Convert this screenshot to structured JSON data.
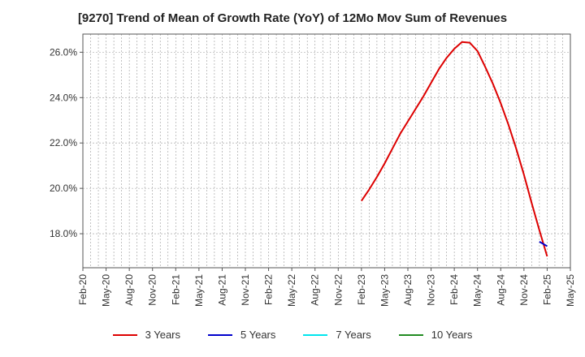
{
  "chart_data": {
    "type": "line",
    "title": "[9270]  Trend of Mean of Growth Rate (YoY) of 12Mo Mov Sum of Revenues",
    "xlabel": "",
    "ylabel": "",
    "ylim": [
      16.5,
      26.8
    ],
    "x_tick_labels": [
      "Feb-20",
      "May-20",
      "Aug-20",
      "Nov-20",
      "Feb-21",
      "May-21",
      "Aug-21",
      "Nov-21",
      "Feb-22",
      "May-22",
      "Aug-22",
      "Nov-22",
      "Feb-23",
      "May-23",
      "Aug-23",
      "Nov-23",
      "Feb-24",
      "May-24",
      "Aug-24",
      "Nov-24",
      "Feb-25",
      "May-25"
    ],
    "y_ticks": [
      18.0,
      20.0,
      22.0,
      24.0,
      26.0
    ],
    "y_tick_labels": [
      "18.0%",
      "20.0%",
      "22.0%",
      "24.0%",
      "26.0%"
    ],
    "grid": true,
    "legend_position": "bottom",
    "series": [
      {
        "name": "3 Years",
        "color": "#dd0000",
        "start_index": 36,
        "values": [
          19.45,
          19.95,
          20.5,
          21.1,
          21.75,
          22.4,
          22.95,
          23.5,
          24.05,
          24.65,
          25.25,
          25.75,
          26.15,
          26.45,
          26.42,
          26.05,
          25.35,
          24.6,
          23.75,
          22.8,
          21.75,
          20.6,
          19.35,
          18.15,
          17.0
        ]
      },
      {
        "name": "5 Years",
        "color": "#0000cc",
        "start_index": 59,
        "values": [
          17.65,
          17.45
        ]
      },
      {
        "name": "7 Years",
        "color": "#00e5ee",
        "start_index": 0,
        "values": []
      },
      {
        "name": "10 Years",
        "color": "#228b22",
        "start_index": 0,
        "values": []
      }
    ]
  },
  "legend": [
    {
      "label": "3 Years",
      "color": "#dd0000"
    },
    {
      "label": "5 Years",
      "color": "#0000cc"
    },
    {
      "label": "7 Years",
      "color": "#00e5ee"
    },
    {
      "label": "10 Years",
      "color": "#228b22"
    }
  ]
}
